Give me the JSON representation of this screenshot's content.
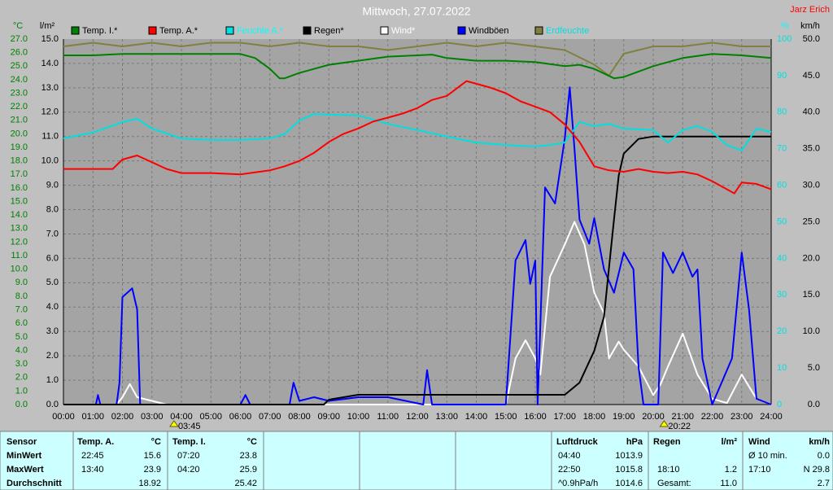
{
  "chart_data": {
    "type": "line",
    "title": "Mittwoch, 27.07.2022",
    "corner_text": "Jarz Erich",
    "ylabel": "°C",
    "y2label": "l/m²",
    "y3label": "%",
    "y4label": "km/h",
    "xlim": [
      0,
      24
    ],
    "xticks": [
      {
        "value": 0,
        "label": "00:00"
      },
      {
        "value": 1,
        "label": "01:00"
      },
      {
        "value": 2,
        "label": "02:00"
      },
      {
        "value": 3,
        "label": "03:00"
      },
      {
        "value": 4,
        "label": "04:00"
      },
      {
        "value": 5,
        "label": "05:00"
      },
      {
        "value": 6,
        "label": "06:00"
      },
      {
        "value": 7,
        "label": "07:00"
      },
      {
        "value": 8,
        "label": "08:00"
      },
      {
        "value": 9,
        "label": "09:00"
      },
      {
        "value": 10,
        "label": "10:00"
      },
      {
        "value": 11,
        "label": "11:00"
      },
      {
        "value": 12,
        "label": "12:00"
      },
      {
        "value": 13,
        "label": "13:00"
      },
      {
        "value": 14,
        "label": "14:00"
      },
      {
        "value": 15,
        "label": "15:00"
      },
      {
        "value": 16,
        "label": "16:00"
      },
      {
        "value": 17,
        "label": "17:00"
      },
      {
        "value": 18,
        "label": "18:00"
      },
      {
        "value": 19,
        "label": "19:00"
      },
      {
        "value": 20,
        "label": "20:00"
      },
      {
        "value": 21,
        "label": "21:00"
      },
      {
        "value": 22,
        "label": "22:00"
      },
      {
        "value": 23,
        "label": "23:00"
      },
      {
        "value": 24,
        "label": "24:00"
      }
    ],
    "ylim": [
      0,
      27
    ],
    "yticks": [
      {
        "value": 0,
        "label": "0.0"
      },
      {
        "value": 1,
        "label": "1.0"
      },
      {
        "value": 2,
        "label": "2.0"
      },
      {
        "value": 3,
        "label": "3.0"
      },
      {
        "value": 4,
        "label": "4.0"
      },
      {
        "value": 5,
        "label": "5.0"
      },
      {
        "value": 6,
        "label": "6.0"
      },
      {
        "value": 7,
        "label": "7.0"
      },
      {
        "value": 8,
        "label": "8.0"
      },
      {
        "value": 9,
        "label": "9.0"
      },
      {
        "value": 10,
        "label": "10.0"
      },
      {
        "value": 11,
        "label": "11.0"
      },
      {
        "value": 12,
        "label": "12.0"
      },
      {
        "value": 13,
        "label": "13.0"
      },
      {
        "value": 14,
        "label": "14.0"
      },
      {
        "value": 15,
        "label": "15.0"
      },
      {
        "value": 16,
        "label": "16.0"
      },
      {
        "value": 17,
        "label": "17.0"
      },
      {
        "value": 18,
        "label": "18.0"
      },
      {
        "value": 19,
        "label": "19.0"
      },
      {
        "value": 20,
        "label": "20.0"
      },
      {
        "value": 21,
        "label": "21.0"
      },
      {
        "value": 22,
        "label": "22.0"
      },
      {
        "value": 23,
        "label": "23.0"
      },
      {
        "value": 24,
        "label": "24.0"
      },
      {
        "value": 25,
        "label": "25.0"
      },
      {
        "value": 26,
        "label": "26.0"
      },
      {
        "value": 27,
        "label": "27.0"
      }
    ],
    "y2lim": [
      0,
      15
    ],
    "y2ticks": [
      {
        "value": 0,
        "label": "0.0"
      },
      {
        "value": 1,
        "label": "1.0"
      },
      {
        "value": 2,
        "label": "2.0"
      },
      {
        "value": 3,
        "label": "3.0"
      },
      {
        "value": 4,
        "label": "4.0"
      },
      {
        "value": 5,
        "label": "5.0"
      },
      {
        "value": 6,
        "label": "6.0"
      },
      {
        "value": 7,
        "label": "7.0"
      },
      {
        "value": 8,
        "label": "8.0"
      },
      {
        "value": 9,
        "label": "9.0"
      },
      {
        "value": 10,
        "label": "10.0"
      },
      {
        "value": 11,
        "label": "11.0"
      },
      {
        "value": 12,
        "label": "12.0"
      },
      {
        "value": 13,
        "label": "13.0"
      },
      {
        "value": 14,
        "label": "14.0"
      },
      {
        "value": 15,
        "label": "15.0"
      }
    ],
    "y3lim": [
      0,
      100
    ],
    "y3ticks": [
      0,
      10,
      20,
      30,
      40,
      50,
      60,
      70,
      80,
      90,
      100
    ],
    "y4lim": [
      0,
      50
    ],
    "y4ticks": [
      {
        "value": 0,
        "label": "0.0"
      },
      {
        "value": 5,
        "label": "5.0"
      },
      {
        "value": 10,
        "label": "10.0"
      },
      {
        "value": 15,
        "label": "15.0"
      },
      {
        "value": 20,
        "label": "20.0"
      },
      {
        "value": 25,
        "label": "25.0"
      },
      {
        "value": 30,
        "label": "30.0"
      },
      {
        "value": 35,
        "label": "35.0"
      },
      {
        "value": 40,
        "label": "40.0"
      },
      {
        "value": 45,
        "label": "45.0"
      },
      {
        "value": 50,
        "label": "50.0"
      }
    ],
    "grid": true,
    "series": [
      {
        "name": "Temp. I.*",
        "color": "#008000",
        "axis": "y",
        "x": [
          0,
          1,
          2,
          3,
          4,
          5,
          6,
          6.5,
          7,
          7.33,
          7.5,
          8,
          9,
          10,
          11,
          12,
          12.5,
          13,
          14,
          15,
          16,
          17,
          17.5,
          18,
          18.67,
          19,
          20,
          21,
          22,
          23,
          24
        ],
        "values": [
          25.8,
          25.8,
          25.9,
          25.9,
          25.9,
          25.9,
          25.9,
          25.6,
          24.8,
          24.1,
          24.1,
          24.5,
          25.1,
          25.4,
          25.7,
          25.8,
          25.85,
          25.6,
          25.4,
          25.4,
          25.3,
          25.0,
          25.1,
          24.8,
          24.1,
          24.2,
          25.0,
          25.6,
          25.9,
          25.8,
          25.6
        ]
      },
      {
        "name": "Temp. A.*",
        "color": "#ff0000",
        "axis": "y",
        "x": [
          0,
          1,
          1.67,
          2,
          2.5,
          3,
          3.5,
          4,
          5,
          6,
          7,
          7.5,
          8,
          8.5,
          9,
          9.5,
          10,
          10.5,
          11,
          11.5,
          12,
          12.5,
          13,
          13.67,
          14,
          14.5,
          15,
          15.5,
          16,
          16.5,
          17,
          17.5,
          18,
          18.5,
          19,
          19.5,
          20,
          20.5,
          21,
          21.5,
          22,
          22.75,
          23,
          23.5,
          24
        ],
        "values": [
          17.4,
          17.4,
          17.4,
          18.1,
          18.4,
          17.9,
          17.4,
          17.1,
          17.1,
          17.0,
          17.3,
          17.6,
          18.0,
          18.6,
          19.4,
          20.0,
          20.4,
          20.9,
          21.2,
          21.5,
          21.9,
          22.5,
          22.8,
          23.9,
          23.7,
          23.4,
          23.0,
          22.4,
          22.0,
          21.6,
          20.7,
          19.4,
          17.6,
          17.3,
          17.2,
          17.4,
          17.2,
          17.1,
          17.2,
          17.0,
          16.5,
          15.6,
          16.4,
          16.3,
          15.9
        ]
      },
      {
        "name": "Feuchte A.*",
        "color": "#00e0e0",
        "label_color": "#00ffff",
        "axis": "y3",
        "x": [
          0,
          1,
          2,
          2.5,
          3,
          4,
          5,
          6,
          7,
          7.5,
          8,
          8.5,
          9,
          10,
          11,
          12,
          13,
          14,
          15,
          16,
          16.5,
          17,
          17.5,
          18,
          18.5,
          19,
          20,
          20.5,
          21,
          21.5,
          22,
          22.5,
          23,
          23.5,
          24
        ],
        "values": [
          72.8,
          74.4,
          77.3,
          78.2,
          75.5,
          72.8,
          72.4,
          72.4,
          72.8,
          74.0,
          77.7,
          79.5,
          79.3,
          79.1,
          76.8,
          75.1,
          73.3,
          71.7,
          71.0,
          70.6,
          71.0,
          71.7,
          77.3,
          76.2,
          76.8,
          75.5,
          75.1,
          71.7,
          75.1,
          76.2,
          74.6,
          71.0,
          69.5,
          75.5,
          74.6
        ]
      },
      {
        "name": "Regen*",
        "color": "#000000",
        "axis": "y2",
        "x": [
          0,
          8.83,
          9,
          9.5,
          10,
          17,
          17.5,
          18,
          18.33,
          18.5,
          18.67,
          18.83,
          19,
          19.5,
          20,
          24
        ],
        "values": [
          0,
          0,
          0.2,
          0.3,
          0.4,
          0.4,
          0.9,
          2.2,
          3.6,
          5.6,
          7.6,
          9.4,
          10.3,
          10.9,
          11.0,
          11.0
        ]
      },
      {
        "name": "Wind*",
        "color": "#ffffff",
        "label_color": "#ffffff",
        "axis": "y4",
        "x": [
          0,
          1.8,
          2,
          2.25,
          2.5,
          3,
          3.5,
          15,
          15.33,
          15.67,
          16,
          16.17,
          16.5,
          17,
          17.33,
          17.67,
          18,
          18.33,
          18.5,
          18.83,
          19,
          19.5,
          20,
          20.25,
          20.5,
          21,
          21.5,
          22,
          22.5,
          23,
          23.5,
          24
        ],
        "values": [
          0,
          0,
          1.0,
          2.8,
          1.0,
          0.5,
          0,
          0,
          6.3,
          8.8,
          6.3,
          4.1,
          17.5,
          21.9,
          25.0,
          21.9,
          15.3,
          12.5,
          6.3,
          8.6,
          7.5,
          5.2,
          1.3,
          2.8,
          5.2,
          9.7,
          4.1,
          0.8,
          0.2,
          4.1,
          0.8,
          0
        ]
      },
      {
        "name": "Windböen",
        "color": "#0000ff",
        "axis": "y4",
        "x": [
          0,
          1.1,
          1.17,
          1.25,
          1.8,
          1.9,
          2,
          2.33,
          2.5,
          2.6,
          6,
          6.17,
          6.33,
          7.67,
          7.8,
          8,
          8.5,
          9,
          10,
          11,
          12.2,
          12.33,
          12.5,
          15,
          15.33,
          15.67,
          15.83,
          16,
          16.08,
          16.33,
          16.67,
          17,
          17.17,
          17.33,
          17.5,
          17.83,
          18,
          18.33,
          18.67,
          19,
          19.33,
          19.5,
          19.67,
          20.17,
          20.33,
          20.67,
          21,
          21.33,
          21.5,
          21.67,
          22,
          22.67,
          23,
          23.25,
          23.5,
          24
        ],
        "values": [
          0,
          0,
          1.3,
          0,
          0,
          3.0,
          14.7,
          15.9,
          13.0,
          0,
          0,
          1.3,
          0,
          0,
          3.0,
          0.5,
          1.0,
          0.5,
          1.0,
          1.0,
          0,
          4.7,
          0,
          0,
          19.7,
          22.5,
          16.5,
          19.7,
          0,
          29.7,
          27.5,
          36.4,
          43.4,
          35.0,
          25.3,
          22.0,
          25.5,
          18.5,
          15.3,
          20.8,
          18.5,
          5.2,
          0,
          0,
          20.8,
          18.0,
          20.8,
          17.5,
          18.5,
          6.3,
          0,
          6.3,
          20.8,
          13.0,
          0.8,
          0
        ]
      },
      {
        "name": "Erdfeuchte",
        "color": "#808040",
        "label_color": "#00e0e0",
        "axis": "y3",
        "x": [
          0,
          1,
          2,
          3,
          4,
          5,
          6,
          7,
          8,
          9,
          10,
          11,
          12,
          13,
          14,
          15,
          16,
          17,
          18,
          18.5,
          19,
          20,
          21,
          22,
          23,
          24
        ],
        "values": [
          98,
          99,
          98,
          99,
          98,
          99,
          99,
          98,
          99,
          98,
          98,
          97,
          98,
          99,
          98,
          99,
          98,
          97,
          93,
          90,
          96,
          98,
          98,
          99,
          98,
          98
        ]
      }
    ],
    "annotations": [
      {
        "x": 3.75,
        "label": "03:45"
      },
      {
        "x": 20.37,
        "label": "20:22"
      }
    ]
  },
  "table": {
    "header": [
      "Sensor",
      "Temp. A.",
      "°C",
      "Temp. I.",
      "°C",
      "Luftdruck",
      "hPa",
      "Regen",
      "l/m²",
      "Wind",
      "km/h"
    ],
    "rows": [
      [
        "MinWert",
        "22:45",
        "15.6",
        "07:20",
        "23.8",
        "04:40",
        "1013.9",
        null,
        null,
        "Ø 10 min.",
        "0.0"
      ],
      [
        "MaxWert",
        "13:40",
        "23.9",
        "04:20",
        "25.9",
        "22:50",
        "1015.8",
        "18:10",
        "1.2",
        "17:10",
        "N 29.8"
      ],
      [
        "Durchschnitt",
        null,
        "18.92",
        null,
        "25.42",
        "^0.9hPa/h",
        "1014.6",
        "Gesamt:",
        "11.0",
        null,
        "2.7"
      ]
    ]
  }
}
